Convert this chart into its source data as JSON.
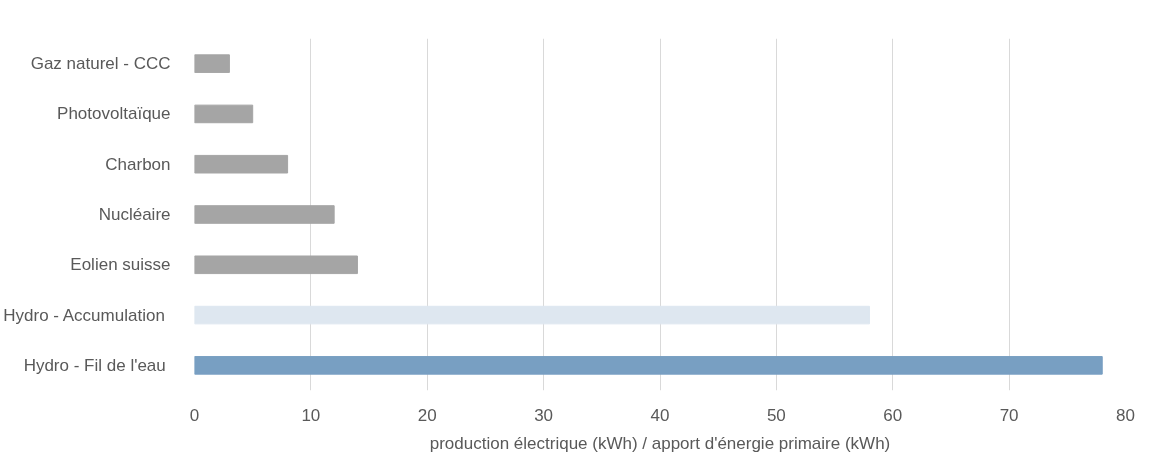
{
  "chart_data": {
    "type": "bar",
    "orientation": "horizontal",
    "xlabel": "production électrique (kWh) / apport d'énergie primaire (kWh)",
    "categories": [
      "Gaz naturel - CCC",
      "Photovoltaïque",
      "Charbon",
      "Nucléaire",
      "Eolien suisse",
      "Hydro  - Accumulation",
      "Hydro  - Fil de l'eau"
    ],
    "values": [
      3,
      5,
      8,
      12,
      14,
      58,
      78
    ],
    "colors": [
      "#a5a5a5",
      "#a5a5a5",
      "#a5a5a5",
      "#a5a5a5",
      "#a5a5a5",
      "#dee7f0",
      "#789fc2"
    ],
    "xlim": [
      0,
      80
    ],
    "xticks": [
      0,
      10,
      20,
      30,
      40,
      50,
      60,
      70,
      80
    ],
    "grid": "x"
  }
}
